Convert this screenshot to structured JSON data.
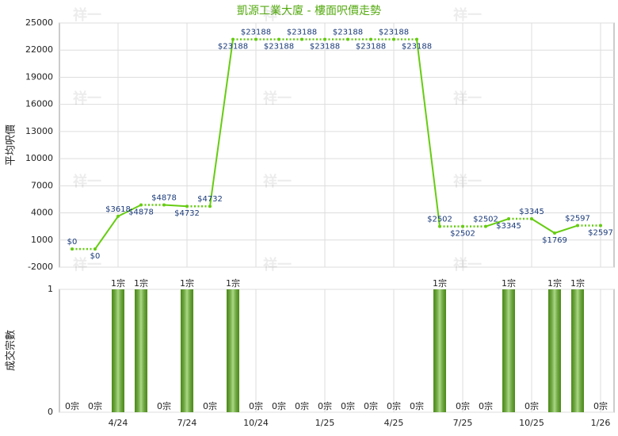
{
  "chart_data": [
    {
      "type": "line",
      "title": "凱源工業大廈 - 樓面呎價走勢",
      "y_label": "平均呎價",
      "color": "#66cc11",
      "categories": [
        null,
        null,
        "4/24",
        null,
        null,
        "7/24",
        null,
        null,
        "10/24",
        null,
        null,
        "1/25",
        null,
        null,
        "4/25",
        null,
        null,
        "7/25",
        null,
        null,
        "10/25",
        null,
        null,
        "1/26"
      ],
      "values": [
        0,
        0,
        3618,
        4878,
        4878,
        4732,
        4732,
        23188,
        23188,
        23188,
        23188,
        23188,
        23188,
        23188,
        23188,
        23188,
        2502,
        2502,
        2502,
        3345,
        3345,
        1769,
        2597,
        2597
      ],
      "value_labels": [
        "$0",
        "$0",
        "$3618",
        "$4878",
        "$4878",
        "$4732",
        "$4732",
        "$23188",
        "$23188",
        "$23188",
        "$23188",
        "$23188",
        "$23188",
        "$23188",
        "$23188",
        "$23188",
        "$2502",
        "$2502",
        "$2502",
        "$3345",
        "$3345",
        "$1769",
        "$2597",
        "$2597"
      ],
      "ylim": [
        -2000,
        25000
      ],
      "yticks": [
        -2000,
        1000,
        4000,
        7000,
        10000,
        13000,
        16000,
        19000,
        22000,
        25000
      ],
      "grid": true,
      "watermark": "祥一"
    },
    {
      "type": "bar",
      "y_label": "成交宗數",
      "color": "#66bb22",
      "values": [
        0,
        0,
        1,
        1,
        0,
        1,
        0,
        1,
        0,
        0,
        0,
        0,
        0,
        0,
        0,
        0,
        1,
        0,
        0,
        1,
        0,
        1,
        1,
        0
      ],
      "value_labels": [
        "0宗",
        "0宗",
        "1宗",
        "1宗",
        "0宗",
        "1宗",
        "0宗",
        "1宗",
        "0宗",
        "0宗",
        "0宗",
        "0宗",
        "0宗",
        "0宗",
        "0宗",
        "0宗",
        "1宗",
        "0宗",
        "0宗",
        "1宗",
        "0宗",
        "1宗",
        "1宗",
        "0宗"
      ],
      "ylim": [
        0,
        1
      ],
      "yticks": [
        0,
        1
      ],
      "grid": true
    }
  ]
}
